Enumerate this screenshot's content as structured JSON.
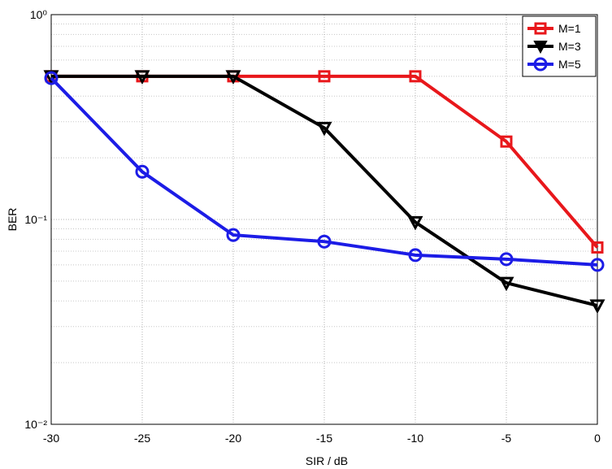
{
  "chart_data": {
    "type": "line",
    "xlabel": "SIR / dB",
    "ylabel": "BER",
    "x": [
      -30,
      -25,
      -20,
      -15,
      -10,
      -5,
      0
    ],
    "series": [
      {
        "name": "M=1",
        "color": "#e8171b",
        "marker": "square",
        "values": [
          0.5,
          0.5,
          0.5,
          0.5,
          0.5,
          0.24,
          0.073
        ]
      },
      {
        "name": "M=3",
        "color": "#000000",
        "marker": "triangle-down",
        "values": [
          0.5,
          0.5,
          0.5,
          0.28,
          0.097,
          0.049,
          0.038
        ]
      },
      {
        "name": "M=5",
        "color": "#1c1ce6",
        "marker": "circle",
        "values": [
          0.49,
          0.171,
          0.084,
          0.078,
          0.067,
          0.064,
          0.06
        ]
      }
    ],
    "xlim": [
      -30,
      0
    ],
    "xticks": [
      -30,
      -25,
      -20,
      -15,
      -10,
      -5,
      0
    ],
    "ylim": [
      0.01,
      1
    ],
    "ylog": true,
    "yticks": [
      {
        "value": 0.01,
        "label": "10⁻²"
      },
      {
        "value": 0.1,
        "label": "10⁻¹"
      },
      {
        "value": 1,
        "label": "10⁰"
      }
    ],
    "grid": true,
    "minor_grid": true,
    "legend": "top-right"
  }
}
